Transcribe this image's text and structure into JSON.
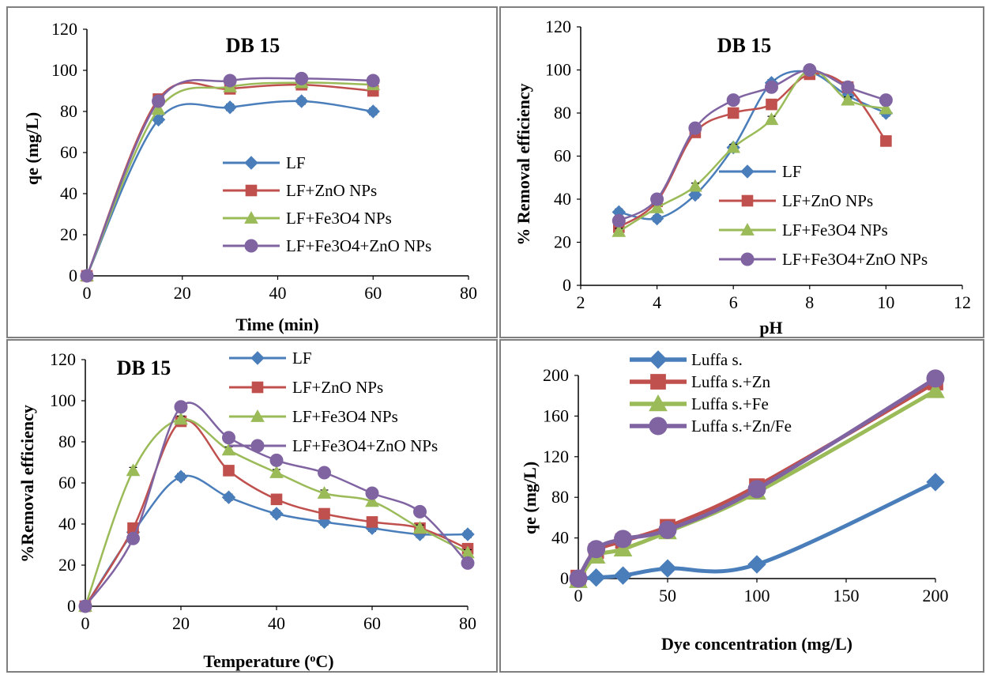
{
  "chart_data": [
    {
      "type": "line",
      "title": "DB 15",
      "xlabel": "Time (min)",
      "ylabel": "qe (mg/L)",
      "xlim": [
        0,
        80
      ],
      "ylim": [
        0,
        120
      ],
      "xticks": [
        "0",
        "20",
        "40",
        "60",
        "80"
      ],
      "yticks": [
        "0",
        "20",
        "40",
        "60",
        "80",
        "100",
        "120"
      ],
      "grid": false,
      "legend": "center-right",
      "error_bars": true,
      "series": [
        {
          "name": "LF",
          "color": "#4a7ebb",
          "marker": "diamond",
          "x": [
            0,
            15,
            30,
            45,
            60
          ],
          "y": [
            0,
            76,
            82,
            85,
            80
          ]
        },
        {
          "name": "LF+ZnO NPs",
          "color": "#c0504d",
          "marker": "square",
          "x": [
            0,
            15,
            30,
            45,
            60
          ],
          "y": [
            0,
            86,
            91,
            93,
            90
          ]
        },
        {
          "name": "LF+Fe3O4 NPs",
          "color": "#9bbb59",
          "marker": "triangle",
          "x": [
            0,
            15,
            30,
            45,
            60
          ],
          "y": [
            0,
            81,
            92,
            94,
            93
          ]
        },
        {
          "name": "LF+Fe3O4+ZnO NPs",
          "color": "#8064a2",
          "marker": "circle",
          "x": [
            0,
            15,
            30,
            45,
            60
          ],
          "y": [
            0,
            85,
            95,
            96,
            95
          ]
        }
      ]
    },
    {
      "type": "line",
      "title": "DB 15",
      "xlabel": "pH",
      "ylabel": "% Removal efficiency",
      "xlim": [
        2,
        12
      ],
      "ylim": [
        0,
        120
      ],
      "xticks": [
        "2",
        "4",
        "6",
        "8",
        "10",
        "12"
      ],
      "yticks": [
        "0",
        "20",
        "40",
        "60",
        "80",
        "100",
        "120"
      ],
      "grid": false,
      "legend": "bottom-right",
      "error_bars": true,
      "series": [
        {
          "name": "LF",
          "color": "#4a7ebb",
          "marker": "diamond",
          "x": [
            3,
            4,
            5,
            6,
            7,
            8,
            9,
            10
          ],
          "y": [
            34,
            31,
            42,
            64,
            94,
            99,
            88,
            80
          ]
        },
        {
          "name": "LF+ZnO NPs",
          "color": "#c0504d",
          "marker": "square",
          "x": [
            3,
            4,
            5,
            6,
            7,
            8,
            9,
            10
          ],
          "y": [
            27,
            39,
            71,
            80,
            84,
            98,
            92,
            67
          ]
        },
        {
          "name": "LF+Fe3O4 NPs",
          "color": "#9bbb59",
          "marker": "triangle",
          "x": [
            3,
            4,
            5,
            6,
            7,
            8,
            9,
            10
          ],
          "y": [
            25,
            36,
            46,
            64,
            77,
            100,
            86,
            82
          ]
        },
        {
          "name": "LF+Fe3O4+ZnO NPs",
          "color": "#8064a2",
          "marker": "circle",
          "x": [
            3,
            4,
            5,
            6,
            7,
            8,
            9,
            10
          ],
          "y": [
            30,
            40,
            73,
            86,
            92,
            100,
            92,
            86
          ]
        }
      ]
    },
    {
      "type": "line",
      "title": "DB 15",
      "xlabel": "Temperature (",
      "xlabel_sup": "o",
      "xlabel_end": "C)",
      "ylabel": "%Removal efficiency",
      "xlim": [
        0,
        80
      ],
      "ylim": [
        0,
        120
      ],
      "xticks": [
        "0",
        "20",
        "40",
        "60",
        "80"
      ],
      "yticks": [
        "0",
        "20",
        "40",
        "60",
        "80",
        "100",
        "120"
      ],
      "grid": false,
      "legend": "top-right",
      "error_bars": true,
      "series": [
        {
          "name": "LF",
          "color": "#4a7ebb",
          "marker": "diamond",
          "x": [
            0,
            10,
            20,
            30,
            40,
            50,
            60,
            70,
            80
          ],
          "y": [
            0,
            36,
            63,
            53,
            45,
            41,
            38,
            35,
            35
          ]
        },
        {
          "name": "LF+ZnO NPs",
          "color": "#c0504d",
          "marker": "square",
          "x": [
            0,
            10,
            20,
            30,
            40,
            50,
            60,
            70,
            80
          ],
          "y": [
            0,
            38,
            90,
            66,
            52,
            45,
            41,
            38,
            28
          ]
        },
        {
          "name": "LF+Fe3O4 NPs",
          "color": "#9bbb59",
          "marker": "triangle",
          "x": [
            0,
            10,
            20,
            30,
            40,
            50,
            60,
            70,
            80
          ],
          "y": [
            0,
            66,
            91,
            76,
            65,
            55,
            51,
            38,
            26
          ]
        },
        {
          "name": "LF+Fe3O4+ZnO NPs",
          "color": "#8064a2",
          "marker": "circle",
          "x": [
            0,
            10,
            20,
            30,
            40,
            50,
            60,
            70,
            80
          ],
          "y": [
            0,
            33,
            97,
            82,
            71,
            65,
            55,
            46,
            21
          ]
        }
      ]
    },
    {
      "type": "line",
      "title": "",
      "xlabel": "Dye concentration (mg/L)",
      "ylabel": "qe (mg/L)",
      "xlim": [
        0,
        200
      ],
      "ylim": [
        0,
        200
      ],
      "xticks": [
        "0",
        "50",
        "100",
        "150",
        "200"
      ],
      "yticks": [
        "0",
        "40",
        "80",
        "120",
        "160",
        "200"
      ],
      "grid": false,
      "legend": "top-left",
      "error_bars": false,
      "series": [
        {
          "name": "Luffa s.",
          "color": "#4a7ebb",
          "marker": "diamond",
          "x": [
            0,
            10,
            25,
            50,
            100,
            200
          ],
          "y": [
            0,
            1,
            3,
            10,
            14,
            95
          ]
        },
        {
          "name": "Luffa s.+Zn",
          "color": "#c0504d",
          "marker": "square",
          "x": [
            0,
            10,
            25,
            50,
            100,
            200
          ],
          "y": [
            1,
            27,
            37,
            51,
            91,
            193
          ]
        },
        {
          "name": "Luffa s.+Fe",
          "color": "#9bbb59",
          "marker": "triangle",
          "x": [
            0,
            10,
            25,
            50,
            100,
            200
          ],
          "y": [
            -2,
            22,
            29,
            46,
            85,
            185
          ]
        },
        {
          "name": "Luffa s.+Zn/Fe",
          "color": "#8064a2",
          "marker": "circle",
          "x": [
            0,
            10,
            25,
            50,
            100,
            200
          ],
          "y": [
            0,
            29,
            39,
            48,
            88,
            197
          ]
        }
      ]
    }
  ]
}
